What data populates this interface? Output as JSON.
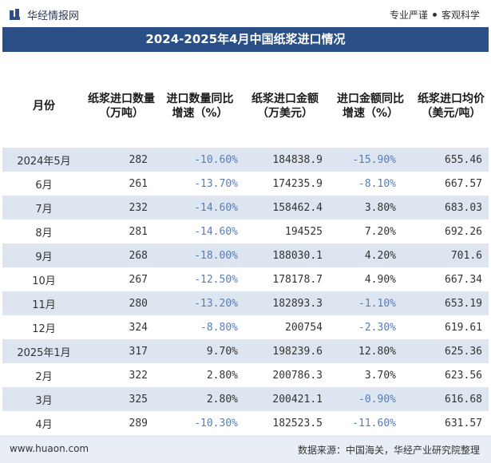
{
  "brand": {
    "name": "华经情报网",
    "tagline_left": "专业严谨",
    "tagline_right": "客观科学"
  },
  "title": "2024-2025年4月中国纸浆进口情况",
  "table": {
    "headers": {
      "month": "月份",
      "volume": "纸浆进口数量（万吨）",
      "volume_yoy": "进口数量同比增速（%）",
      "amount": "纸浆进口金额（万美元）",
      "amount_yoy": "进口金额同比增速（%）",
      "price": "纸浆进口均价（美元/吨）"
    },
    "rows": [
      {
        "month": "2024年5月",
        "volume": "282",
        "volume_yoy": "-10.60%",
        "amount": "184838.9",
        "amount_yoy": "-15.90%",
        "price": "655.46"
      },
      {
        "month": "6月",
        "volume": "261",
        "volume_yoy": "-13.70%",
        "amount": "174235.9",
        "amount_yoy": "-8.10%",
        "price": "667.57"
      },
      {
        "month": "7月",
        "volume": "232",
        "volume_yoy": "-14.60%",
        "amount": "158462.4",
        "amount_yoy": "3.80%",
        "price": "683.03"
      },
      {
        "month": "8月",
        "volume": "281",
        "volume_yoy": "-14.60%",
        "amount": "194525",
        "amount_yoy": "7.20%",
        "price": "692.26"
      },
      {
        "month": "9月",
        "volume": "268",
        "volume_yoy": "-18.00%",
        "amount": "188030.1",
        "amount_yoy": "4.20%",
        "price": "701.6"
      },
      {
        "month": "10月",
        "volume": "267",
        "volume_yoy": "-12.50%",
        "amount": "178178.7",
        "amount_yoy": "4.90%",
        "price": "667.34"
      },
      {
        "month": "11月",
        "volume": "280",
        "volume_yoy": "-13.20%",
        "amount": "182893.3",
        "amount_yoy": "-1.10%",
        "price": "653.19"
      },
      {
        "month": "12月",
        "volume": "324",
        "volume_yoy": "-8.80%",
        "amount": "200754",
        "amount_yoy": "-2.30%",
        "price": "619.61"
      },
      {
        "month": "2025年1月",
        "volume": "317",
        "volume_yoy": "9.70%",
        "amount": "198239.6",
        "amount_yoy": "12.80%",
        "price": "625.36"
      },
      {
        "month": "2月",
        "volume": "322",
        "volume_yoy": "2.80%",
        "amount": "200786.3",
        "amount_yoy": "3.70%",
        "price": "623.56"
      },
      {
        "month": "3月",
        "volume": "325",
        "volume_yoy": "2.80%",
        "amount": "200421.1",
        "amount_yoy": "-0.90%",
        "price": "616.68"
      },
      {
        "month": "4月",
        "volume": "289",
        "volume_yoy": "-10.30%",
        "amount": "182523.5",
        "amount_yoy": "-11.60%",
        "price": "631.57"
      }
    ]
  },
  "footer": {
    "website": "www.huaon.com",
    "source": "数据来源：中国海关，华经产业研究院整理"
  },
  "colors": {
    "title_bg": "#2a4f86",
    "stripe": "#dde5f1",
    "negative_text": "#5b7db1",
    "footer_bg": "#e9eef6"
  }
}
